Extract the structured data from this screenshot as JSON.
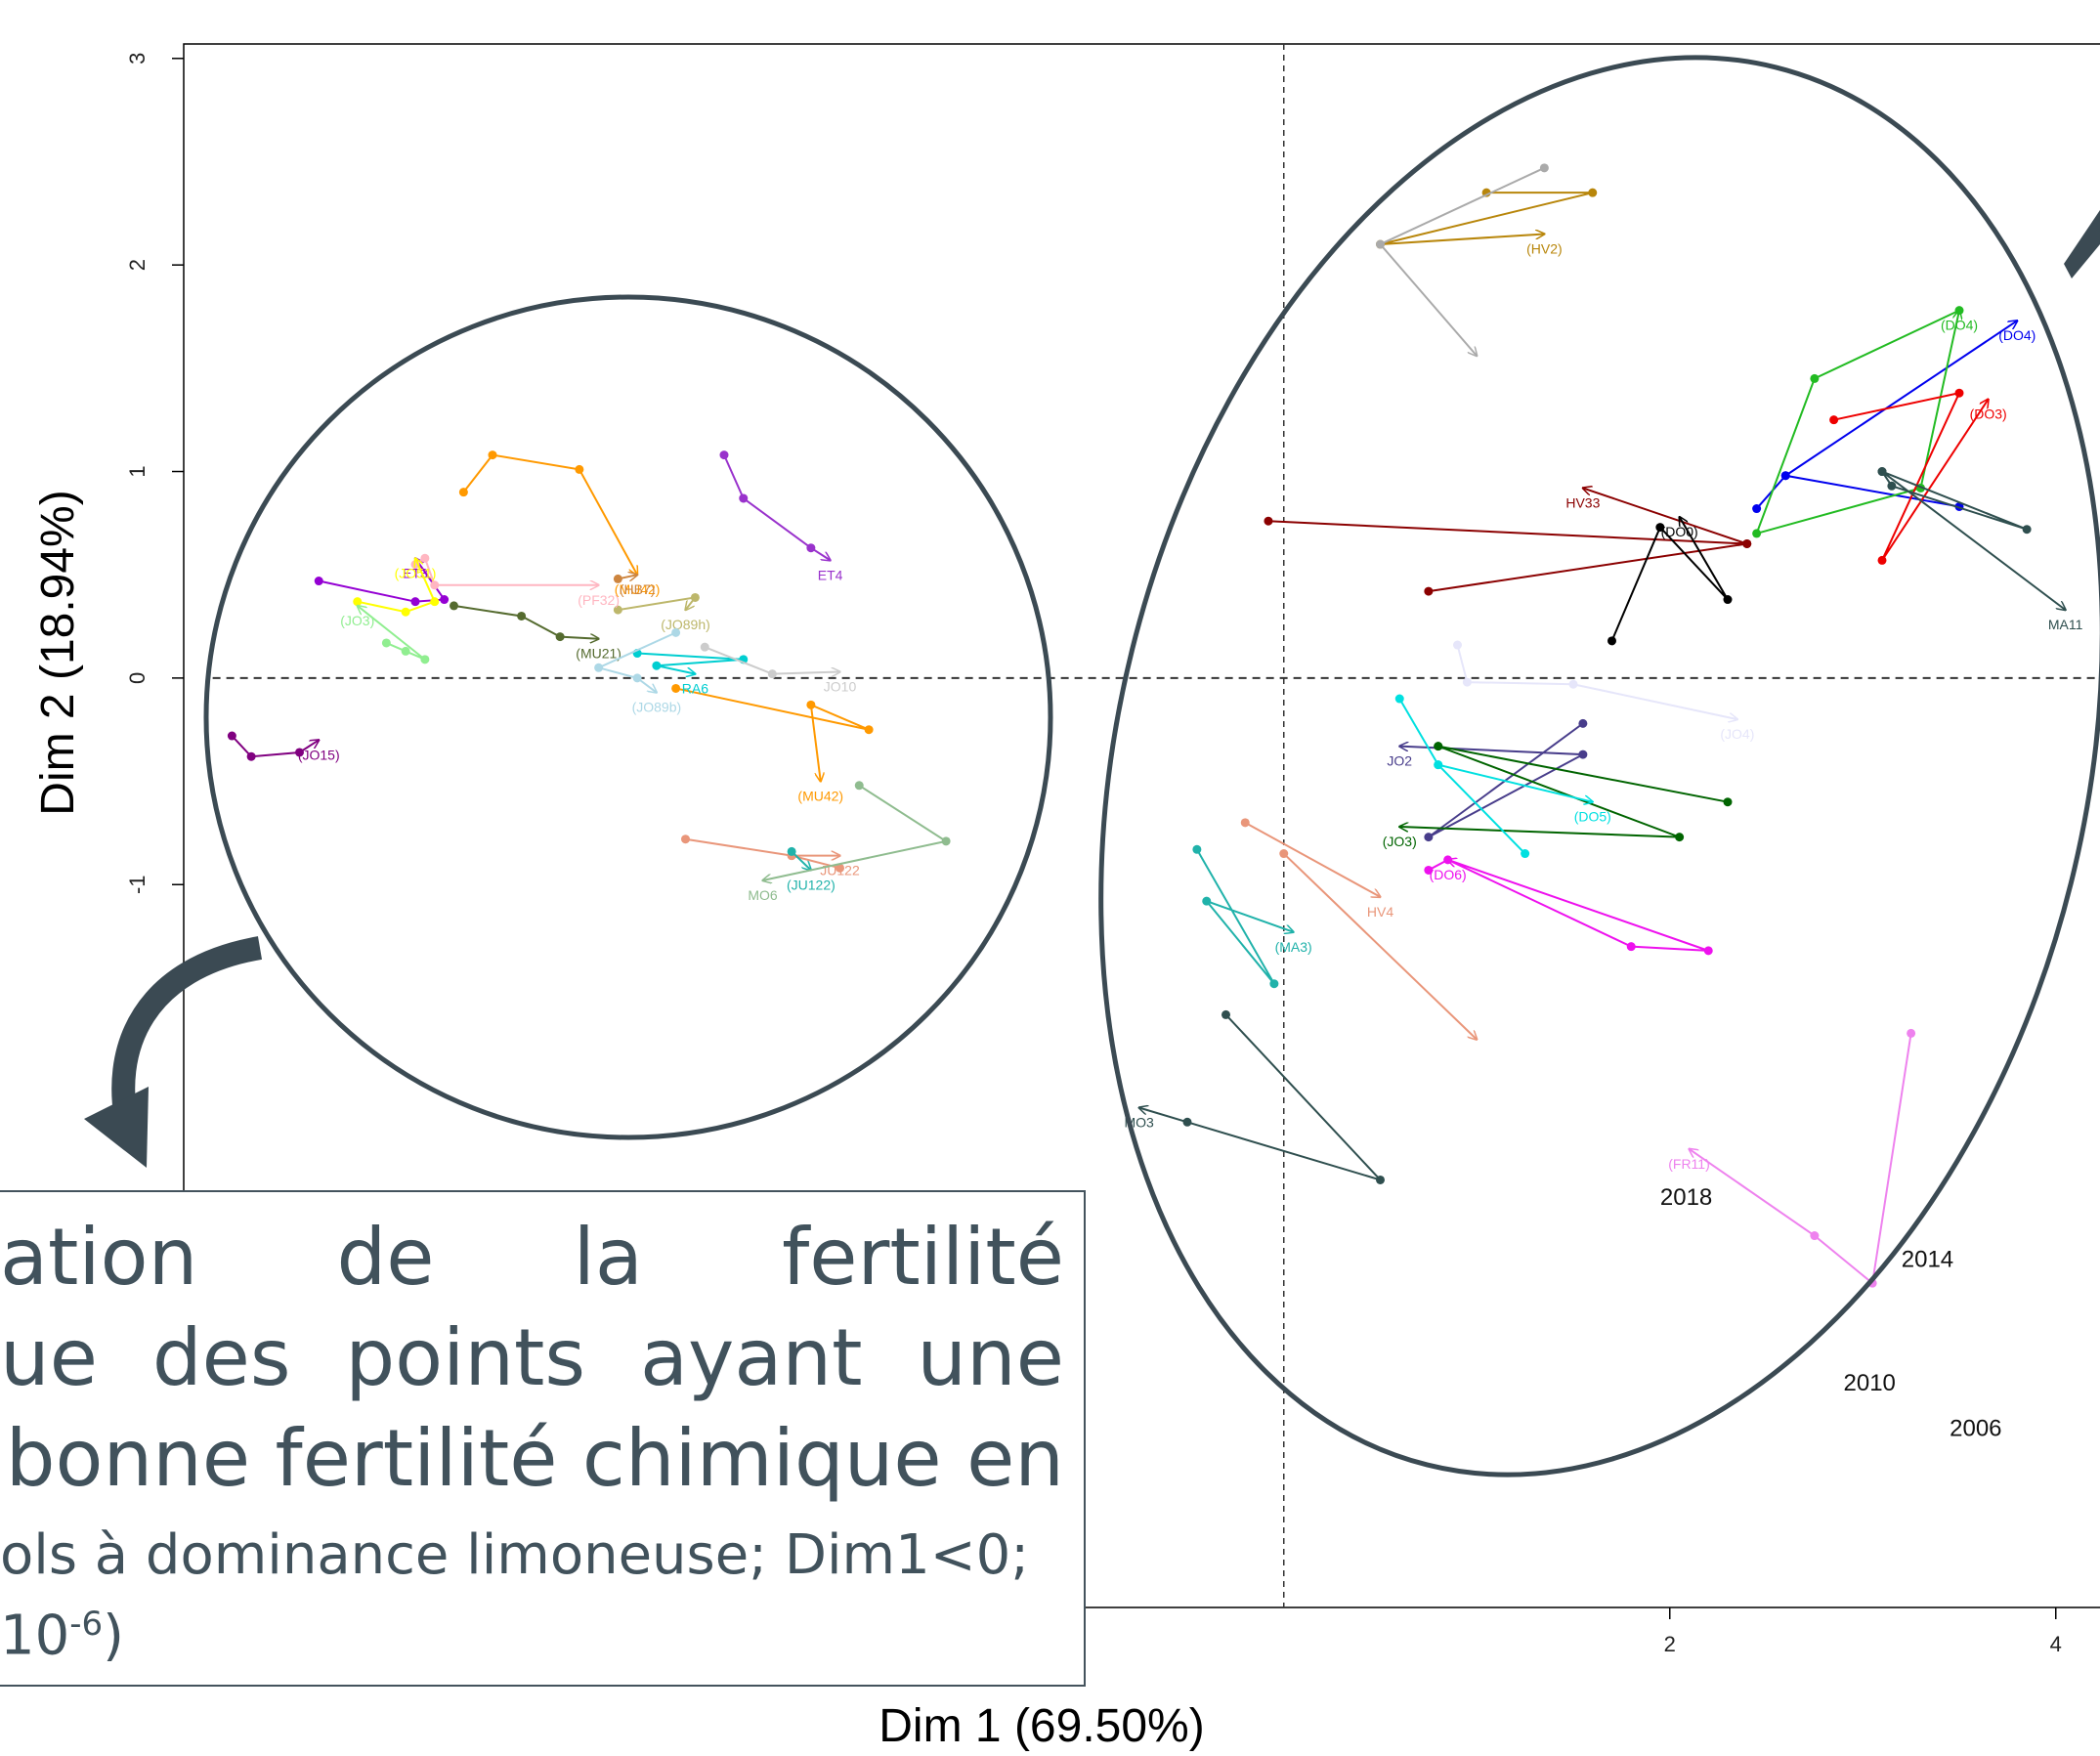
{
  "chart_data": {
    "type": "scatter",
    "xlabel": "Dim 1 (69.50%)",
    "ylabel": "Dim 2 (18.94%)",
    "xlim": [
      -5.7,
      4.3
    ],
    "ylim": [
      -4.5,
      3.07
    ],
    "x_ticks": [
      2,
      4
    ],
    "y_ticks": [
      3,
      2,
      1,
      0,
      -1
    ],
    "reference_lines": [
      "x=0",
      "y=0"
    ],
    "groups": [
      {
        "label": "(HV2)",
        "color": "#b8860b",
        "points": [
          [
            1.05,
            2.35
          ],
          [
            1.6,
            2.35
          ],
          [
            0.5,
            2.1
          ],
          [
            1.35,
            2.15
          ]
        ]
      },
      {
        "label": "",
        "color": "#aaaaaa",
        "points": [
          [
            1.35,
            2.47
          ],
          [
            0.5,
            2.1
          ],
          [
            1.0,
            1.56
          ]
        ]
      },
      {
        "label": "(DO4)",
        "color": "#0000ee",
        "points": [
          [
            2.45,
            0.82
          ],
          [
            2.6,
            0.98
          ],
          [
            3.5,
            0.83
          ],
          [
            2.6,
            0.98
          ],
          [
            3.8,
            1.73
          ]
        ]
      },
      {
        "label": "(DO4)",
        "color": "#22bb22",
        "points": [
          [
            3.5,
            1.78
          ],
          [
            2.75,
            1.45
          ],
          [
            2.45,
            0.7
          ],
          [
            3.3,
            0.92
          ],
          [
            3.5,
            1.78
          ]
        ]
      },
      {
        "label": "(DO3)",
        "color": "#ee0000",
        "points": [
          [
            2.85,
            1.25
          ],
          [
            3.5,
            1.38
          ],
          [
            3.1,
            0.57
          ],
          [
            3.65,
            1.35
          ]
        ]
      },
      {
        "label": "MA11",
        "color": "#2f4f4f",
        "points": [
          [
            3.1,
            1.0
          ],
          [
            3.15,
            0.93
          ],
          [
            3.85,
            0.72
          ],
          [
            3.1,
            1.0
          ],
          [
            4.05,
            0.33
          ]
        ]
      },
      {
        "label": "HV33",
        "color": "#8b0000",
        "points": [
          [
            -0.08,
            0.76
          ],
          [
            2.4,
            0.65
          ],
          [
            0.75,
            0.42
          ],
          [
            2.4,
            0.65
          ],
          [
            1.55,
            0.92
          ]
        ]
      },
      {
        "label": "(DO0)",
        "color": "#000000",
        "points": [
          [
            1.7,
            0.18
          ],
          [
            1.95,
            0.73
          ],
          [
            2.3,
            0.38
          ],
          [
            2.05,
            0.78
          ]
        ]
      },
      {
        "label": "(JO4)",
        "color": "#e6e6fa",
        "points": [
          [
            0.9,
            0.16
          ],
          [
            0.95,
            -0.02
          ],
          [
            1.5,
            -0.03
          ],
          [
            2.35,
            -0.2
          ]
        ]
      },
      {
        "label": "JO2",
        "color": "#483d8b",
        "points": [
          [
            1.55,
            -0.22
          ],
          [
            0.75,
            -0.77
          ],
          [
            1.55,
            -0.37
          ],
          [
            0.6,
            -0.33
          ]
        ]
      },
      {
        "label": "(JO3)",
        "color": "#006400",
        "points": [
          [
            0.8,
            -0.33
          ],
          [
            2.3,
            -0.6
          ],
          [
            0.8,
            -0.33
          ],
          [
            2.05,
            -0.77
          ],
          [
            0.6,
            -0.72
          ]
        ]
      },
      {
        "label": "(DO5)",
        "color": "#00e0e0",
        "points": [
          [
            0.6,
            -0.1
          ],
          [
            0.8,
            -0.42
          ],
          [
            1.25,
            -0.85
          ],
          [
            0.8,
            -0.42
          ],
          [
            1.6,
            -0.6
          ]
        ]
      },
      {
        "label": "(DO6)",
        "color": "#ee11ee",
        "points": [
          [
            0.75,
            -0.93
          ],
          [
            0.85,
            -0.88
          ],
          [
            1.8,
            -1.3
          ],
          [
            2.2,
            -1.32
          ],
          [
            0.85,
            -0.88
          ]
        ]
      },
      {
        "label": "HV4",
        "color": "#e9967a",
        "points": [
          [
            -0.2,
            -0.7
          ],
          [
            0.5,
            -1.06
          ]
        ]
      },
      {
        "label": "",
        "color": "#e9967a",
        "points": [
          [
            0.0,
            -0.85
          ],
          [
            1.0,
            -1.75
          ]
        ]
      },
      {
        "label": "(MA3)",
        "color": "#20b2aa",
        "points": [
          [
            -0.45,
            -0.83
          ],
          [
            -0.05,
            -1.48
          ],
          [
            -0.4,
            -1.08
          ],
          [
            0.05,
            -1.23
          ]
        ]
      },
      {
        "label": "MO3",
        "color": "#2f4f4f",
        "points": [
          [
            -0.3,
            -1.63
          ],
          [
            0.5,
            -2.43
          ],
          [
            -0.5,
            -2.15
          ],
          [
            -0.75,
            -2.08
          ]
        ]
      },
      {
        "label": "(FR11)",
        "color": "#ee82ee",
        "points": [
          [
            3.25,
            -1.72
          ],
          [
            3.05,
            -2.93
          ],
          [
            2.75,
            -2.7
          ],
          [
            2.1,
            -2.28
          ]
        ]
      },
      {
        "label": "ET4",
        "color": "#9932cc",
        "points": [
          [
            -2.9,
            1.08
          ],
          [
            -2.8,
            0.87
          ],
          [
            -2.45,
            0.63
          ],
          [
            -2.35,
            0.57
          ]
        ]
      },
      {
        "label": "ET3",
        "color": "#9400d3",
        "points": [
          [
            -5.0,
            0.47
          ],
          [
            -4.5,
            0.37
          ],
          [
            -4.35,
            0.38
          ],
          [
            -4.5,
            0.58
          ]
        ]
      },
      {
        "label": "(MU42)",
        "color": "#ff9900",
        "points": [
          [
            -4.25,
            0.9
          ],
          [
            -4.1,
            1.08
          ],
          [
            -3.65,
            1.01
          ],
          [
            -3.35,
            0.5
          ]
        ]
      },
      {
        "label": "(MU42)",
        "color": "#ff9900",
        "points": [
          [
            -3.15,
            -0.05
          ],
          [
            -2.15,
            -0.25
          ],
          [
            -2.45,
            -0.13
          ],
          [
            -2.4,
            -0.5
          ]
        ]
      },
      {
        "label": "(HB7)",
        "color": "#cd853f",
        "points": [
          [
            -3.45,
            0.48
          ],
          [
            -3.35,
            0.5
          ]
        ]
      },
      {
        "label": "(JO89h)",
        "color": "#bdb76b",
        "points": [
          [
            -3.45,
            0.33
          ],
          [
            -3.05,
            0.39
          ],
          [
            -3.1,
            0.33
          ]
        ]
      },
      {
        "label": "(PF32)",
        "color": "#ffb6c1",
        "points": [
          [
            -4.5,
            0.55
          ],
          [
            -4.45,
            0.58
          ],
          [
            -4.4,
            0.45
          ],
          [
            -3.55,
            0.45
          ]
        ]
      },
      {
        "label": "(JO51)",
        "color": "#ffff00",
        "points": [
          [
            -4.8,
            0.37
          ],
          [
            -4.55,
            0.32
          ],
          [
            -4.4,
            0.37
          ],
          [
            -4.5,
            0.58
          ]
        ]
      },
      {
        "label": "(MU21)",
        "color": "#556b2f",
        "points": [
          [
            -4.3,
            0.35
          ],
          [
            -3.95,
            0.3
          ],
          [
            -3.75,
            0.2
          ],
          [
            -3.55,
            0.19
          ]
        ]
      },
      {
        "label": "(JO3)",
        "color": "#90ee90",
        "points": [
          [
            -4.65,
            0.17
          ],
          [
            -4.55,
            0.13
          ],
          [
            -4.45,
            0.09
          ],
          [
            -4.8,
            0.35
          ]
        ]
      },
      {
        "label": "RA6",
        "color": "#00ced1",
        "points": [
          [
            -3.35,
            0.12
          ],
          [
            -2.8,
            0.09
          ],
          [
            -3.25,
            0.06
          ],
          [
            -3.05,
            0.02
          ]
        ]
      },
      {
        "label": "JO10",
        "color": "#cccccc",
        "points": [
          [
            -3.0,
            0.15
          ],
          [
            -2.65,
            0.02
          ],
          [
            -2.3,
            0.03
          ]
        ]
      },
      {
        "label": "(JO89b)",
        "color": "#add8e6",
        "points": [
          [
            -3.15,
            0.22
          ],
          [
            -3.55,
            0.05
          ],
          [
            -3.35,
            0.0
          ],
          [
            -3.25,
            -0.07
          ]
        ]
      },
      {
        "label": "(JO15)",
        "color": "#800080",
        "points": [
          [
            -5.45,
            -0.28
          ],
          [
            -5.35,
            -0.38
          ],
          [
            -5.1,
            -0.36
          ],
          [
            -5.0,
            -0.3
          ]
        ]
      },
      {
        "label": "JU122",
        "color": "#e9967a",
        "points": [
          [
            -3.1,
            -0.78
          ],
          [
            -2.55,
            -0.86
          ],
          [
            -2.3,
            -0.92
          ],
          [
            -2.55,
            -0.86
          ],
          [
            -2.3,
            -0.86
          ]
        ]
      },
      {
        "label": "(JU122)",
        "color": "#20b2aa",
        "points": [
          [
            -2.55,
            -0.84
          ],
          [
            -2.45,
            -0.93
          ]
        ]
      },
      {
        "label": "MO6",
        "color": "#8fbc8f",
        "points": [
          [
            -2.2,
            -0.52
          ],
          [
            -1.75,
            -0.79
          ],
          [
            -2.7,
            -0.98
          ]
        ]
      }
    ],
    "year_labels": [
      {
        "label": "2018",
        "x": 1.95,
        "y": -2.55
      },
      {
        "label": "2014",
        "x": 3.2,
        "y": -2.85
      },
      {
        "label": "2010",
        "x": 2.9,
        "y": -3.45
      },
      {
        "label": "2006",
        "x": 3.45,
        "y": -3.67
      }
    ]
  },
  "textbox": {
    "line1_words": [
      "ation",
      "de",
      "la",
      "fertilité"
    ],
    "line2_words": [
      "ue",
      "des",
      "points",
      "ayant",
      "une"
    ],
    "line3": "bonne fertilité chimique en",
    "line4": "ols à dominance limoneuse; Dim1<0;",
    "line5_base": "10",
    "line5_exp": "-6",
    "line5_close": ")"
  }
}
